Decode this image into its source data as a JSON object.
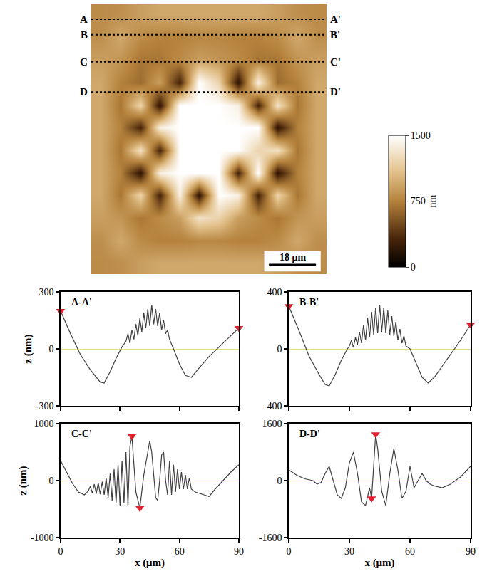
{
  "chart_data": [
    {
      "type": "heatmap",
      "x": [
        3.75,
        11.25,
        18.75,
        26.25,
        33.75,
        41.25,
        48.75,
        56.25,
        63.75,
        71.25,
        78.75,
        86.25
      ],
      "y": [
        99.67,
        91,
        82.33,
        73.67,
        65,
        56.33,
        47.67,
        39,
        30.33,
        21.67,
        13,
        4.33
      ],
      "z": [
        [
          800,
          820,
          900,
          950,
          950,
          950,
          950,
          950,
          950,
          900,
          820,
          800
        ],
        [
          820,
          950,
          800,
          750,
          750,
          780,
          780,
          750,
          750,
          800,
          950,
          820
        ],
        [
          900,
          850,
          700,
          700,
          800,
          900,
          850,
          800,
          700,
          700,
          850,
          900
        ],
        [
          950,
          750,
          650,
          900,
          300,
          1500,
          1200,
          200,
          1400,
          650,
          750,
          950
        ],
        [
          950,
          700,
          1200,
          200,
          1500,
          1500,
          1500,
          1400,
          300,
          1300,
          700,
          950
        ],
        [
          950,
          750,
          300,
          1400,
          1500,
          1500,
          1500,
          1500,
          1500,
          200,
          750,
          950
        ],
        [
          950,
          700,
          1300,
          300,
          1500,
          1500,
          1500,
          1500,
          1200,
          1300,
          700,
          950
        ],
        [
          950,
          750,
          200,
          1400,
          1500,
          1500,
          1500,
          300,
          1500,
          200,
          750,
          950
        ],
        [
          950,
          700,
          1200,
          300,
          1400,
          200,
          1500,
          1400,
          300,
          1200,
          700,
          950
        ],
        [
          900,
          850,
          700,
          800,
          900,
          1300,
          1200,
          900,
          800,
          700,
          850,
          900
        ],
        [
          820,
          950,
          800,
          750,
          750,
          780,
          780,
          750,
          750,
          800,
          950,
          820
        ],
        [
          800,
          820,
          900,
          950,
          950,
          950,
          950,
          950,
          950,
          900,
          820,
          800
        ]
      ],
      "xlim": [
        0,
        90
      ],
      "ylim": [
        0,
        104
      ],
      "tick_labels": false,
      "colorbar": {
        "range": [
          0,
          1500
        ],
        "ticks": [
          0,
          750,
          1500
        ],
        "title": "nm"
      },
      "sections": [
        {
          "label": "A",
          "end_label": "A'",
          "y": 98
        },
        {
          "label": "B",
          "end_label": "B'",
          "y": 92
        },
        {
          "label": "C",
          "end_label": "C'",
          "y": 81.6
        },
        {
          "label": "D",
          "end_label": "D'",
          "y": 70
        }
      ],
      "scale_bar": {
        "label": "18 μm",
        "length": 18
      }
    },
    {
      "type": "line",
      "title": "A-A'",
      "x": [
        0,
        5,
        10,
        15,
        20,
        22,
        25,
        28,
        31,
        33,
        34,
        35,
        36,
        37,
        38,
        39,
        40,
        41,
        42,
        43,
        44,
        45,
        46,
        47,
        48,
        49,
        50,
        51,
        52,
        53,
        54,
        55,
        57,
        60,
        63,
        66,
        70,
        75,
        80,
        85,
        90
      ],
      "values": [
        200,
        80,
        -30,
        -110,
        -175,
        -180,
        -120,
        -50,
        10,
        40,
        80,
        30,
        100,
        50,
        130,
        70,
        160,
        90,
        190,
        110,
        210,
        120,
        230,
        130,
        210,
        120,
        190,
        100,
        150,
        80,
        100,
        50,
        0,
        -80,
        -140,
        -150,
        -100,
        -40,
        10,
        60,
        110
      ],
      "color": "#404040",
      "highlights": {
        "x": [
          0,
          90
        ],
        "values": [
          200,
          110
        ],
        "marker": "triangle-down",
        "color": "#e0202a"
      },
      "xlim": [
        0,
        90
      ],
      "ylim": [
        -300,
        300
      ],
      "xticks": [
        0,
        30,
        60,
        90
      ],
      "yticks": [
        -300,
        0,
        300
      ],
      "y_label": "z (nm)",
      "tick_labels": "y",
      "grid": false
    },
    {
      "type": "line",
      "title": "B-B'",
      "x": [
        0,
        5,
        10,
        15,
        18,
        20,
        23,
        26,
        29,
        30,
        31,
        32,
        33,
        34,
        35,
        36,
        37,
        38,
        39,
        40,
        41,
        42,
        43,
        44,
        45,
        46,
        47,
        48,
        49,
        50,
        51,
        52,
        53,
        54,
        55,
        56,
        57,
        58,
        60,
        63,
        66,
        69,
        72,
        76,
        80,
        85,
        90
      ],
      "values": [
        300,
        130,
        -50,
        -180,
        -250,
        -260,
        -180,
        -80,
        0,
        20,
        60,
        10,
        80,
        30,
        120,
        40,
        170,
        60,
        220,
        80,
        260,
        100,
        290,
        110,
        310,
        120,
        290,
        110,
        270,
        100,
        230,
        90,
        190,
        60,
        140,
        40,
        90,
        20,
        0,
        -100,
        -200,
        -240,
        -200,
        -120,
        -40,
        60,
        170
      ],
      "color": "#404040",
      "highlights": {
        "x": [
          0,
          90
        ],
        "values": [
          300,
          170
        ],
        "marker": "triangle-down",
        "color": "#e0202a"
      },
      "xlim": [
        0,
        90
      ],
      "ylim": [
        -400,
        400
      ],
      "xticks": [
        0,
        30,
        60,
        90
      ],
      "yticks": [
        -400,
        0,
        400
      ],
      "tick_labels": "y",
      "grid": false
    },
    {
      "type": "line",
      "title": "C-C'",
      "x": [
        0,
        3,
        6,
        9,
        12,
        14,
        15,
        16,
        17,
        18,
        19,
        20,
        21,
        22,
        23,
        24,
        25,
        26,
        27,
        28,
        29,
        30,
        31,
        32,
        33,
        34,
        35,
        36,
        38,
        40,
        42,
        44,
        45,
        46,
        48,
        49,
        50,
        51,
        52,
        53,
        54,
        55,
        56,
        57,
        58,
        59,
        60,
        61,
        62,
        63,
        64,
        65,
        66,
        68,
        72,
        75,
        78,
        82,
        86,
        90
      ],
      "values": [
        350,
        150,
        -50,
        -200,
        -250,
        -180,
        -100,
        -220,
        -60,
        -230,
        -40,
        -240,
        -20,
        -250,
        50,
        -300,
        120,
        -350,
        200,
        -400,
        280,
        -450,
        350,
        -400,
        500,
        -450,
        600,
        780,
        -200,
        -480,
        100,
        500,
        700,
        500,
        -300,
        -350,
        0,
        450,
        500,
        0,
        -250,
        350,
        -250,
        280,
        -200,
        200,
        -150,
        150,
        -150,
        100,
        -150,
        50,
        -150,
        -200,
        -250,
        -280,
        -150,
        0,
        150,
        280
      ],
      "color": "#404040",
      "highlights": {
        "x": [
          36,
          40
        ],
        "values": [
          780,
          -480
        ],
        "marker": "triangle-down",
        "color": "#e0202a"
      },
      "xlim": [
        0,
        90
      ],
      "ylim": [
        -1000,
        1000
      ],
      "xticks": [
        0,
        30,
        60,
        90
      ],
      "yticks": [
        -1000,
        0,
        1000
      ],
      "x_label": "x (μm)",
      "y_label": "z (nm)",
      "grid": false
    },
    {
      "type": "line",
      "title": "D-D'",
      "x": [
        0,
        4,
        8,
        12,
        14,
        16,
        18,
        20,
        22,
        24,
        26,
        28,
        30,
        32,
        34,
        36,
        38,
        40,
        41,
        42,
        43,
        44,
        46,
        48,
        50,
        52,
        54,
        56,
        58,
        60,
        61,
        62,
        64,
        66,
        68,
        70,
        72,
        76,
        80,
        85,
        90
      ],
      "values": [
        300,
        150,
        50,
        0,
        -100,
        -50,
        200,
        400,
        0,
        -400,
        -500,
        -200,
        500,
        800,
        200,
        -600,
        -700,
        -200,
        -500,
        400,
        1300,
        900,
        -300,
        -700,
        200,
        900,
        300,
        -500,
        -300,
        400,
        100,
        -200,
        0,
        200,
        0,
        -100,
        -150,
        -200,
        -100,
        100,
        400
      ],
      "color": "#404040",
      "highlights": {
        "x": [
          43,
          41
        ],
        "values": [
          1300,
          -500
        ],
        "marker": "triangle-down",
        "color": "#e0202a"
      },
      "xlim": [
        0,
        90
      ],
      "ylim": [
        -1600,
        1600
      ],
      "xticks": [
        0,
        30,
        60,
        90
      ],
      "yticks": [
        -1600,
        0,
        1600
      ],
      "x_label": "x (μm)",
      "grid": false
    }
  ]
}
